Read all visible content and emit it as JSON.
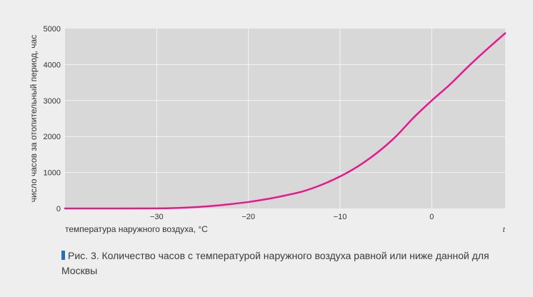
{
  "chart_data": {
    "type": "line",
    "xlabel": "температура наружного воздуха, °С",
    "xlabel_end": "t",
    "ylabel": "число часов за отопительный период, час",
    "xlim": [
      -40,
      8
    ],
    "ylim": [
      0,
      5000
    ],
    "x_ticks": [
      -30,
      -20,
      -10,
      0
    ],
    "x_tick_labels": [
      "−30",
      "−20",
      "−10",
      "0"
    ],
    "y_ticks": [
      0,
      1000,
      2000,
      3000,
      4000,
      5000
    ],
    "y_tick_labels": [
      "0",
      "1000",
      "2000",
      "3000",
      "4000",
      "5000"
    ],
    "grid": true,
    "colors": {
      "line": "#e5188f",
      "plot_bg": "#d8d8d8",
      "grid": "#f4f4f4",
      "page_bg": "#eeeeee",
      "caption_marker": "#2a6fb5"
    },
    "series": [
      {
        "x": [
          -40,
          -34,
          -30,
          -28,
          -26,
          -24,
          -22,
          -20,
          -18,
          -16,
          -14,
          -12,
          -10,
          -8,
          -6,
          -4,
          -2,
          0,
          2,
          4,
          6,
          8
        ],
        "values": [
          0,
          0,
          2,
          12,
          35,
          70,
          120,
          180,
          260,
          360,
          480,
          660,
          890,
          1180,
          1540,
          1980,
          2520,
          3000,
          3450,
          3950,
          4420,
          4870
        ]
      }
    ]
  },
  "caption": {
    "text": "Рис. 3. Количество часов с температурой наружного воздуха равной или ниже данной для Москвы"
  }
}
